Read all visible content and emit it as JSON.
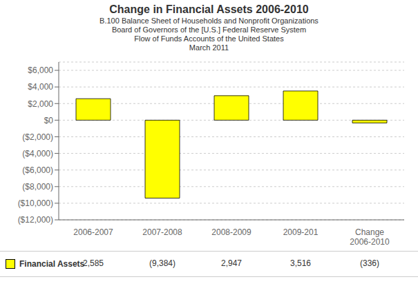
{
  "chart_data": {
    "type": "bar",
    "title": "Change in Financial Assets 2006-2010",
    "subtitle": [
      "B.100 Balance Sheet of Households and Nonprofit Organizations",
      "Board of Governors of the [U.S.] Federal Reserve System",
      "Flow of Funds Accounts of the United States",
      "March 2011"
    ],
    "categories": [
      "2006-2007",
      "2007-2008",
      "2008-2009",
      "2009-201",
      "Change\n2006-2010"
    ],
    "series": [
      {
        "name": "Financial Assets",
        "color": "#FFFF00",
        "values": [
          2585,
          -9384,
          2947,
          3516,
          -336
        ],
        "value_labels": [
          "2,585",
          "(9,384)",
          "2,947",
          "3,516",
          "(336)"
        ]
      }
    ],
    "ylim": [
      -12000,
      7000
    ],
    "yticks": [
      {
        "value": 6000,
        "label": "$6,000"
      },
      {
        "value": 4000,
        "label": "$4,000"
      },
      {
        "value": 2000,
        "label": "$2,000"
      },
      {
        "value": 0,
        "label": "$0"
      },
      {
        "value": -2000,
        "label": "($2,000)"
      },
      {
        "value": -4000,
        "label": "($4,000)"
      },
      {
        "value": -6000,
        "label": "($6,000)"
      },
      {
        "value": -8000,
        "label": "($8,000)"
      },
      {
        "value": -10000,
        "label": "($10,000)"
      },
      {
        "value": -12000,
        "label": "($12,000)"
      }
    ],
    "grid": true
  }
}
